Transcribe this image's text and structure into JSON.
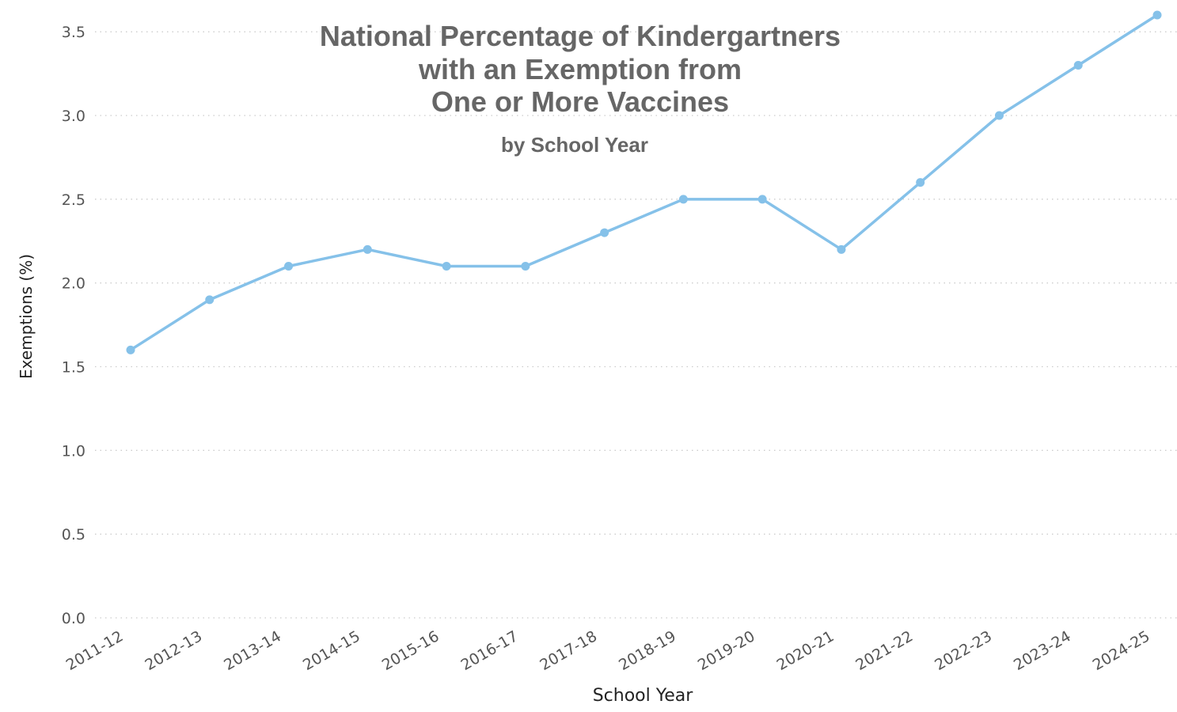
{
  "chart_data": {
    "type": "line",
    "title": [
      "National Percentage of Kindergartners",
      "with an Exemption from",
      "One or More Vaccines"
    ],
    "subtitle": "by School Year",
    "xlabel": "School Year",
    "ylabel": "Exemptions (%)",
    "categories": [
      "2011-12",
      "2012-13",
      "2013-14",
      "2014-15",
      "2015-16",
      "2016-17",
      "2017-18",
      "2018-19",
      "2019-20",
      "2020-21",
      "2021-22",
      "2022-23",
      "2023-24",
      "2024-25"
    ],
    "series": [
      {
        "values": [
          1.6,
          1.9,
          2.1,
          2.2,
          2.1,
          2.1,
          2.3,
          2.5,
          2.5,
          2.2,
          2.6,
          3.0,
          3.3,
          3.6
        ]
      }
    ],
    "ylim": [
      0,
      3.6
    ],
    "yticks": [
      "0.0",
      "0.5",
      "1.0",
      "1.5",
      "2.0",
      "2.5",
      "3.0",
      "3.5"
    ],
    "grid": true,
    "line_color": "#85C1E9",
    "grid_color": "#CCCCCC"
  }
}
